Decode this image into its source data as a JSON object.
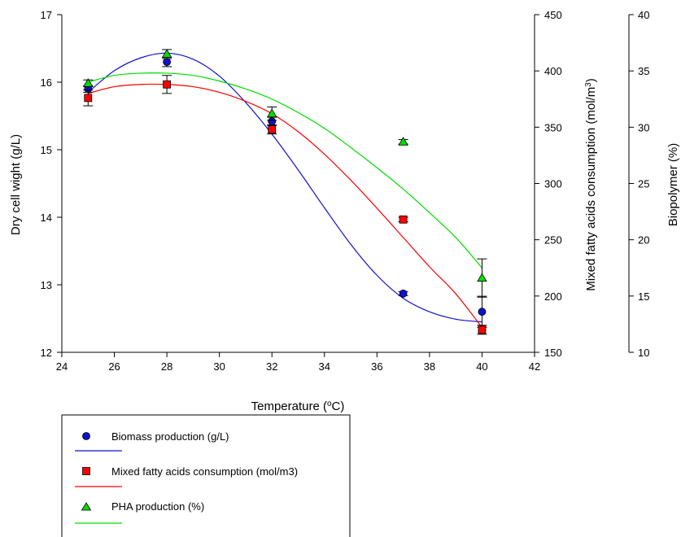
{
  "chart_data": {
    "type": "scatter",
    "title": "",
    "xlabel": "Temperature (",
    "xlabel_sup": "o",
    "xlabel_end": "C)",
    "ylabel_left": "Dry cell wight (g/L)",
    "ylabel_right1": "Mixed fatty acids consumption (mol/m",
    "ylabel_right1_sup": "3",
    "ylabel_right1_end": ")",
    "ylabel_right2": "Biopolymer (%)",
    "xlim": [
      24,
      42
    ],
    "x_ticks": [
      "24",
      "26",
      "28",
      "30",
      "32",
      "34",
      "36",
      "38",
      "40",
      "42"
    ],
    "y_left_lim": [
      12,
      17
    ],
    "y_left_ticks": [
      "12",
      "13",
      "14",
      "15",
      "16",
      "17"
    ],
    "y_right1_lim": [
      150,
      450
    ],
    "y_right1_ticks": [
      "150",
      "200",
      "250",
      "300",
      "350",
      "400",
      "450"
    ],
    "y_right2_lim": [
      10,
      40
    ],
    "y_right2_ticks": [
      "10",
      "15",
      "20",
      "25",
      "30",
      "35",
      "40"
    ],
    "grid": false,
    "legend_position": "bottom-left, below the plot",
    "series": [
      {
        "name": "Biomass production (g/L)",
        "axis": "left",
        "marker": "circle",
        "color": "#1010cc",
        "x": [
          25,
          28,
          32,
          37,
          40
        ],
        "y": [
          15.9,
          16.3,
          15.42,
          12.87,
          12.6
        ],
        "err": [
          0.05,
          0.07,
          0.06,
          0.03,
          0.23
        ],
        "fit_x": [
          25,
          26,
          27,
          28,
          29,
          30,
          31,
          32,
          33,
          34,
          35,
          36,
          37,
          38,
          39,
          40
        ],
        "fit_y": [
          15.85,
          16.17,
          16.36,
          16.43,
          16.34,
          16.09,
          15.7,
          15.23,
          14.7,
          14.14,
          13.6,
          13.14,
          12.8,
          12.6,
          12.49,
          12.45
        ]
      },
      {
        "name": "Mixed fatty acids consumption (mol/m3)",
        "axis": "right1",
        "marker": "square",
        "color": "#ff0000",
        "x": [
          25,
          28,
          32,
          37,
          40
        ],
        "y": [
          376,
          388,
          348,
          268,
          170
        ],
        "err": [
          7,
          8,
          4,
          2,
          4
        ],
        "fit_x": [
          25,
          26,
          27,
          28,
          29,
          30,
          31,
          32,
          33,
          34,
          35,
          36,
          37,
          38,
          39,
          40
        ],
        "fit_y": [
          380,
          386,
          388,
          388,
          386,
          381,
          373,
          362,
          346,
          326,
          303,
          278,
          252,
          226,
          202,
          172
        ]
      },
      {
        "name": "PHA production (%)",
        "axis": "right2",
        "marker": "triangle",
        "color": "#00dd00",
        "x": [
          25,
          28,
          32,
          37,
          40
        ],
        "y": [
          33.9,
          36.5,
          31.2,
          28.7,
          16.6
        ],
        "err": [
          0.3,
          0.4,
          0.6,
          0.2,
          1.7
        ],
        "fit_x": [
          25,
          26,
          27,
          28,
          29,
          30,
          31,
          32,
          33,
          34,
          35,
          36,
          37,
          38,
          39,
          40
        ],
        "fit_y": [
          34.0,
          34.6,
          34.8,
          34.8,
          34.6,
          34.1,
          33.4,
          32.5,
          31.3,
          29.9,
          28.2,
          26.4,
          24.5,
          22.4,
          20.2,
          17.5
        ]
      }
    ]
  }
}
